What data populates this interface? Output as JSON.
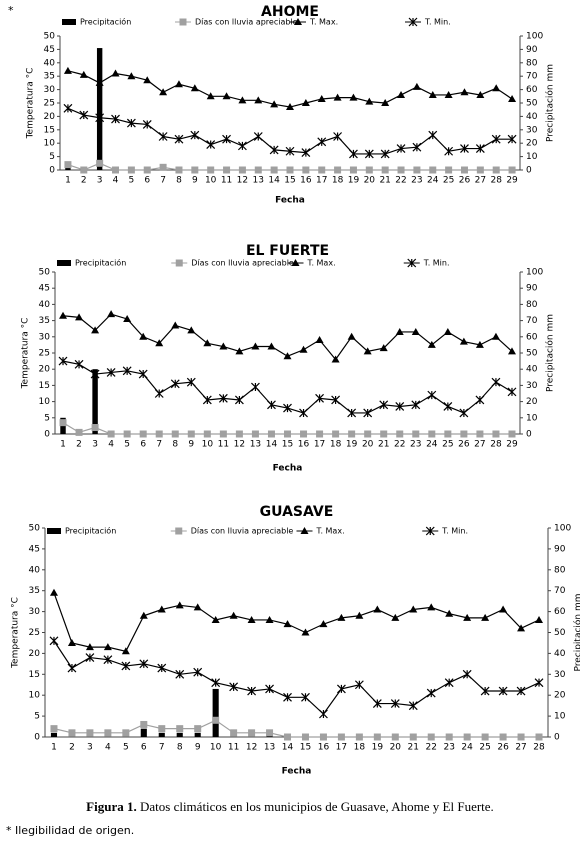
{
  "note_mark": "*",
  "chart_data": [
    {
      "type": "line",
      "title": "AHOME",
      "x_label": "Fecha",
      "y_label": "Temperatura °C",
      "y2_label": "Precipitación  mm",
      "categories": [
        "1",
        "2",
        "3",
        "4",
        "5",
        "6",
        "7",
        "8",
        "9",
        "10",
        "11",
        "12",
        "13",
        "14",
        "15",
        "16",
        "17",
        "18",
        "19",
        "20",
        "21",
        "22",
        "23",
        "24",
        "25",
        "26",
        "27",
        "28",
        "29"
      ],
      "ylim": [
        0,
        50
      ],
      "yticks": [
        0,
        5,
        10,
        15,
        20,
        25,
        30,
        35,
        40,
        45,
        50
      ],
      "y2lim": [
        0,
        100
      ],
      "y2ticks": [
        0,
        10,
        20,
        30,
        40,
        50,
        60,
        70,
        80,
        90,
        100
      ],
      "series": [
        {
          "name": "Precipitación",
          "color": "#000000",
          "kind": "bar",
          "axis": "y2",
          "values": [
            5,
            0,
            91,
            0,
            0,
            0,
            0,
            0,
            0,
            0,
            0,
            0,
            0,
            0,
            0,
            0,
            0,
            0,
            0,
            0,
            0,
            0,
            0,
            0,
            0,
            0,
            0,
            0,
            0
          ]
        },
        {
          "name": "Días con lluvia apreciable",
          "color": "#a0a0a0",
          "kind": "line",
          "marker": "square",
          "values": [
            2,
            0,
            2.5,
            0,
            0,
            0,
            1,
            0,
            0,
            0,
            0,
            0,
            0,
            0,
            0,
            0,
            0,
            0,
            0,
            0,
            0,
            0,
            0,
            0,
            0,
            0,
            0,
            0,
            0
          ]
        },
        {
          "name": "T. Max.",
          "color": "#000000",
          "kind": "line",
          "marker": "triangle",
          "values": [
            37,
            35.5,
            32.5,
            36,
            35,
            33.5,
            29,
            32,
            30.5,
            27.5,
            27.5,
            26,
            26,
            24.5,
            23.5,
            25,
            26.5,
            27,
            27,
            25.5,
            25,
            28,
            31,
            28,
            28,
            29,
            28,
            30.5,
            26.5
          ]
        },
        {
          "name": "T. Min.",
          "color": "#000000",
          "kind": "line",
          "marker": "x",
          "values": [
            23,
            20.5,
            19.5,
            19,
            17.5,
            17,
            12.5,
            11.5,
            13,
            9.5,
            11.5,
            9,
            12.5,
            7.5,
            7,
            6.5,
            10.5,
            12.5,
            6,
            6,
            6,
            8,
            8.5,
            13,
            7,
            8,
            8,
            11.5,
            11.5
          ]
        }
      ]
    },
    {
      "type": "line",
      "title": "EL FUERTE",
      "x_label": "Fecha",
      "y_label": "Temperatura °C",
      "y2_label": "Precipitación  mm",
      "categories": [
        "1",
        "2",
        "3",
        "4",
        "5",
        "6",
        "7",
        "8",
        "9",
        "10",
        "11",
        "12",
        "13",
        "14",
        "15",
        "16",
        "17",
        "18",
        "19",
        "20",
        "21",
        "22",
        "23",
        "24",
        "25",
        "26",
        "27",
        "28",
        "29"
      ],
      "ylim": [
        0,
        50
      ],
      "yticks": [
        0,
        5,
        10,
        15,
        20,
        25,
        30,
        35,
        40,
        45,
        50
      ],
      "y2lim": [
        0,
        100
      ],
      "y2ticks": [
        0,
        10,
        20,
        30,
        40,
        50,
        60,
        70,
        80,
        90,
        100
      ],
      "series": [
        {
          "name": "Precipitación",
          "color": "#000000",
          "kind": "bar",
          "axis": "y2",
          "values": [
            10,
            0,
            40,
            0,
            0,
            0,
            0,
            0,
            0,
            0,
            0,
            0,
            0,
            0,
            0,
            0,
            0,
            0,
            0,
            0,
            0,
            0,
            0,
            0,
            0,
            0,
            0,
            0,
            0
          ]
        },
        {
          "name": "Días con lluvia apreciable",
          "color": "#a0a0a0",
          "kind": "line",
          "marker": "square",
          "values": [
            3.5,
            0.5,
            2,
            0,
            0,
            0,
            0,
            0,
            0,
            0,
            0,
            0,
            0,
            0,
            0,
            0,
            0,
            0,
            0,
            0,
            0,
            0,
            0,
            0,
            0,
            0,
            0,
            0,
            0
          ]
        },
        {
          "name": "T. Max.",
          "color": "#000000",
          "kind": "line",
          "marker": "triangle",
          "values": [
            36.5,
            36,
            32,
            37,
            35.5,
            30,
            28,
            33.5,
            32,
            28,
            27,
            25.5,
            27,
            27,
            24,
            26,
            29,
            23,
            30,
            25.5,
            26.5,
            31.5,
            31.5,
            27.5,
            31.5,
            28.5,
            27.5,
            30,
            25.5
          ]
        },
        {
          "name": "T. Min.",
          "color": "#000000",
          "kind": "line",
          "marker": "x",
          "values": [
            22.5,
            21.5,
            18.5,
            19,
            19.5,
            18.5,
            12.5,
            15.5,
            16,
            10.5,
            11,
            10.5,
            14.5,
            9,
            8,
            6.5,
            11,
            10.5,
            6.5,
            6.5,
            9,
            8.5,
            9,
            12,
            8.5,
            6.5,
            10.5,
            16,
            13
          ]
        }
      ]
    },
    {
      "type": "line",
      "title": "GUASAVE",
      "x_label": "Fecha",
      "y_label": "Temperatura °C",
      "y2_label": "Precipitación  mm",
      "categories": [
        "1",
        "2",
        "3",
        "4",
        "5",
        "6",
        "7",
        "8",
        "9",
        "10",
        "11",
        "12",
        "13",
        "14",
        "15",
        "16",
        "17",
        "18",
        "19",
        "20",
        "21",
        "22",
        "23",
        "24",
        "25",
        "26",
        "27",
        "28"
      ],
      "ylim": [
        0,
        50
      ],
      "yticks": [
        0,
        5,
        10,
        15,
        20,
        25,
        30,
        35,
        40,
        45,
        50
      ],
      "y2lim": [
        0,
        100
      ],
      "y2ticks": [
        0,
        10,
        20,
        30,
        40,
        50,
        60,
        70,
        80,
        90,
        100
      ],
      "series": [
        {
          "name": "Precipitación",
          "color": "#000000",
          "kind": "bar",
          "axis": "y2",
          "values": [
            2,
            0,
            0,
            0,
            0,
            4,
            2,
            2,
            2,
            23,
            0,
            0,
            3,
            0,
            0,
            0,
            0,
            0,
            0,
            0,
            0,
            0,
            0,
            0,
            0,
            0,
            0,
            0
          ]
        },
        {
          "name": "Días con lluvia apreciable",
          "color": "#a0a0a0",
          "kind": "line",
          "marker": "square",
          "values": [
            2,
            1,
            1,
            1,
            1,
            3,
            2,
            2,
            2,
            4,
            1,
            1,
            1,
            0,
            0,
            0,
            0,
            0,
            0,
            0,
            0,
            0,
            0,
            0,
            0,
            0,
            0,
            0
          ]
        },
        {
          "name": "T. Max.",
          "color": "#000000",
          "kind": "line",
          "marker": "triangle",
          "values": [
            34.5,
            22.5,
            21.5,
            21.5,
            20.5,
            29,
            30.5,
            31.5,
            31,
            28,
            29,
            28,
            28,
            27,
            25,
            27,
            28.5,
            29,
            30.5,
            28.5,
            30.5,
            31,
            29.5,
            28.5,
            28.5,
            30.5,
            26,
            28
          ]
        },
        {
          "name": "T. Min.",
          "color": "#000000",
          "kind": "line",
          "marker": "x",
          "values": [
            23,
            16.5,
            19,
            18.5,
            17,
            17.5,
            16.5,
            15,
            15.5,
            13,
            12,
            11,
            11.5,
            9.5,
            9.5,
            5.5,
            11.5,
            12.5,
            8,
            8,
            7.5,
            10.5,
            13,
            15,
            11,
            11,
            11,
            13
          ]
        }
      ]
    }
  ],
  "caption": {
    "label": "Figura 1.",
    "text": " Datos climáticos en los municipios de Guasave, Ahome y El Fuerte."
  },
  "footnote": "* Ilegibilidad de origen."
}
